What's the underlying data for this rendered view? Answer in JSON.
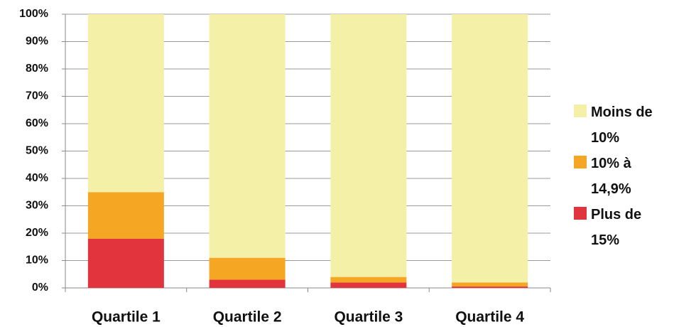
{
  "chart_data": {
    "type": "stacked_bar",
    "categories": [
      "Quartile 1",
      "Quartile 2",
      "Quartile 3",
      "Quartile 4"
    ],
    "series": [
      {
        "name": "Plus de 15%",
        "color": "#e1343c",
        "values": [
          18,
          3,
          2,
          0.5
        ]
      },
      {
        "name": "10% à 14,9%",
        "color": "#f5a623",
        "values": [
          17,
          8,
          2,
          1.5
        ]
      },
      {
        "name": "Moins de 10%",
        "color": "#f5f0a8",
        "values": [
          65,
          89,
          96,
          98
        ]
      }
    ],
    "ylim": [
      0,
      100
    ],
    "yticks": [
      {
        "value": 0,
        "label": "0%"
      },
      {
        "value": 10,
        "label": "10%"
      },
      {
        "value": 20,
        "label": "20%"
      },
      {
        "value": 30,
        "label": "30%"
      },
      {
        "value": 40,
        "label": "40%"
      },
      {
        "value": 50,
        "label": "50%"
      },
      {
        "value": 60,
        "label": "60%"
      },
      {
        "value": 70,
        "label": "70%"
      },
      {
        "value": 80,
        "label": "80%"
      },
      {
        "value": 90,
        "label": "90%"
      },
      {
        "value": 100,
        "label": "100%"
      }
    ],
    "grid": true,
    "legend": "right"
  }
}
